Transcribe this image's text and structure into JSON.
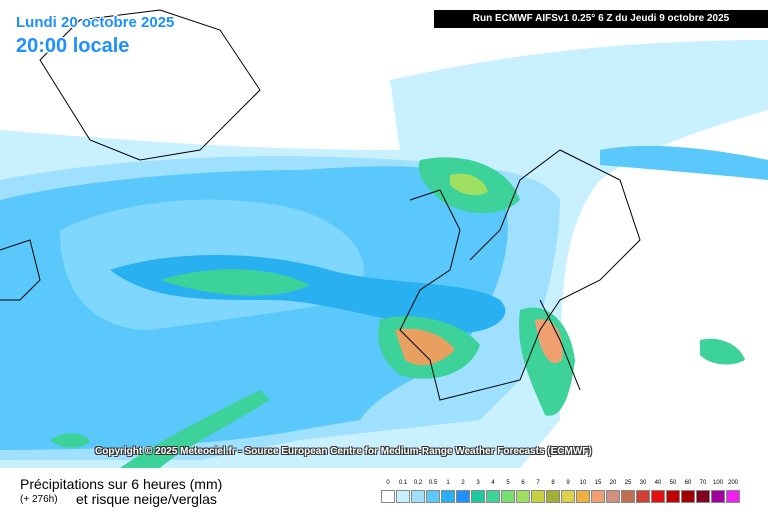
{
  "header": {
    "date": "Lundi 20 octobre 2025",
    "time": "20:00 locale",
    "run": "Run ECMWF AIFSv1 0.25° 6 Z du Jeudi 9 octobre 2025"
  },
  "footer": {
    "copyright": "Copyright © 2025 Meteociel.fr - Source European Centre for Medium-Range Weather Forecasts (ECMWF)",
    "product": "Précipitations sur 6 heures (mm)",
    "lead": "(+ 276h)",
    "subtitle": "et risque neige/verglas"
  },
  "legend": [
    {
      "label": "0",
      "color": "#ffffff"
    },
    {
      "label": "0.1",
      "color": "#c8f0ff"
    },
    {
      "label": "0.2",
      "color": "#9fe0ff"
    },
    {
      "label": "0.5",
      "color": "#5ac8fa"
    },
    {
      "label": "1",
      "color": "#28b0f0"
    },
    {
      "label": "2",
      "color": "#1e90ff"
    },
    {
      "label": "3",
      "color": "#20c8a0"
    },
    {
      "label": "4",
      "color": "#3cd29a"
    },
    {
      "label": "5",
      "color": "#78e070"
    },
    {
      "label": "6",
      "color": "#a0e060"
    },
    {
      "label": "7",
      "color": "#c8d040"
    },
    {
      "label": "8",
      "color": "#a0b030"
    },
    {
      "label": "9",
      "color": "#e0d050"
    },
    {
      "label": "10",
      "color": "#f0b040"
    },
    {
      "label": "15",
      "color": "#f0a070"
    },
    {
      "label": "20",
      "color": "#d09080"
    },
    {
      "label": "25",
      "color": "#c07050"
    },
    {
      "label": "30",
      "color": "#d04030"
    },
    {
      "label": "40",
      "color": "#e01010"
    },
    {
      "label": "50",
      "color": "#c00000"
    },
    {
      "label": "60",
      "color": "#a00000"
    },
    {
      "label": "70",
      "color": "#800020"
    },
    {
      "label": "100",
      "color": "#a000a0"
    },
    {
      "label": "200",
      "color": "#f020f0"
    }
  ]
}
